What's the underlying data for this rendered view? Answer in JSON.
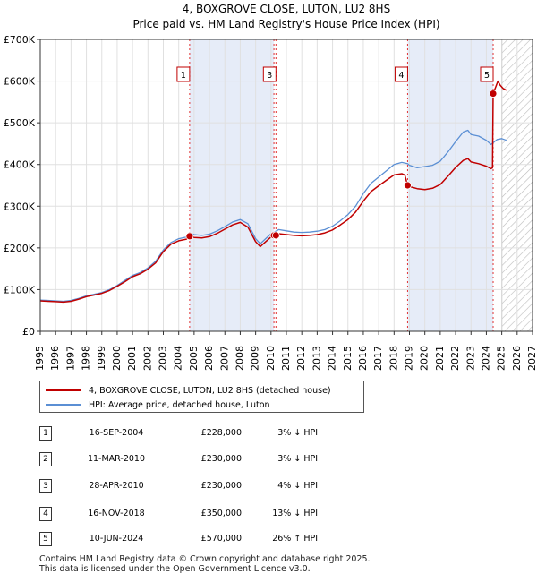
{
  "chart_data": {
    "type": "line",
    "title": "4, BOXGROVE CLOSE, LUTON, LU2 8HS",
    "subtitle": "Price paid vs. HM Land Registry's House Price Index (HPI)",
    "xlabel": "",
    "ylabel": "",
    "xlim": [
      1995,
      2027
    ],
    "ylim": [
      0,
      700000
    ],
    "x_ticks": [
      1995,
      1996,
      1997,
      1998,
      1999,
      2000,
      2001,
      2002,
      2003,
      2004,
      2005,
      2006,
      2007,
      2008,
      2009,
      2010,
      2011,
      2012,
      2013,
      2014,
      2015,
      2016,
      2017,
      2018,
      2019,
      2020,
      2021,
      2022,
      2023,
      2024,
      2025,
      2026,
      2027
    ],
    "y_ticks": [
      {
        "value": 0,
        "label": "£0"
      },
      {
        "value": 100000,
        "label": "£100K"
      },
      {
        "value": 200000,
        "label": "£200K"
      },
      {
        "value": 300000,
        "label": "£300K"
      },
      {
        "value": 400000,
        "label": "£400K"
      },
      {
        "value": 500000,
        "label": "£500K"
      },
      {
        "value": 600000,
        "label": "£600K"
      },
      {
        "value": 700000,
        "label": "£700K"
      }
    ],
    "grid": true,
    "shaded_spans": [
      [
        2004.71,
        2010.19
      ],
      [
        2018.88,
        2024.44
      ]
    ],
    "forecast_start": 2025.0,
    "series": [
      {
        "name": "HPI: Average price, detached house, Luton",
        "color": "#5b8fd4",
        "points": [
          [
            1995.0,
            75000
          ],
          [
            1995.5,
            74000
          ],
          [
            1996.0,
            73000
          ],
          [
            1996.5,
            72000
          ],
          [
            1997.0,
            74000
          ],
          [
            1997.5,
            79000
          ],
          [
            1998.0,
            85000
          ],
          [
            1998.5,
            89000
          ],
          [
            1999.0,
            93000
          ],
          [
            1999.5,
            100000
          ],
          [
            2000.0,
            110000
          ],
          [
            2000.5,
            122000
          ],
          [
            2001.0,
            134000
          ],
          [
            2001.5,
            141000
          ],
          [
            2002.0,
            152000
          ],
          [
            2002.5,
            168000
          ],
          [
            2003.0,
            195000
          ],
          [
            2003.5,
            213000
          ],
          [
            2004.0,
            222000
          ],
          [
            2004.5,
            226000
          ],
          [
            2004.71,
            235000
          ],
          [
            2005.0,
            232000
          ],
          [
            2005.5,
            230000
          ],
          [
            2006.0,
            233000
          ],
          [
            2006.5,
            241000
          ],
          [
            2007.0,
            251000
          ],
          [
            2007.5,
            262000
          ],
          [
            2008.0,
            268000
          ],
          [
            2008.5,
            258000
          ],
          [
            2009.0,
            222000
          ],
          [
            2009.3,
            210000
          ],
          [
            2009.6,
            220000
          ],
          [
            2010.0,
            234000
          ],
          [
            2010.19,
            238000
          ],
          [
            2010.32,
            240000
          ],
          [
            2010.5,
            244000
          ],
          [
            2011.0,
            241000
          ],
          [
            2011.5,
            238000
          ],
          [
            2012.0,
            237000
          ],
          [
            2012.5,
            238000
          ],
          [
            2013.0,
            240000
          ],
          [
            2013.5,
            244000
          ],
          [
            2014.0,
            252000
          ],
          [
            2014.5,
            265000
          ],
          [
            2015.0,
            280000
          ],
          [
            2015.5,
            300000
          ],
          [
            2016.0,
            330000
          ],
          [
            2016.5,
            355000
          ],
          [
            2017.0,
            370000
          ],
          [
            2017.5,
            385000
          ],
          [
            2018.0,
            400000
          ],
          [
            2018.5,
            405000
          ],
          [
            2018.88,
            402000
          ],
          [
            2019.0,
            398000
          ],
          [
            2019.5,
            392000
          ],
          [
            2020.0,
            395000
          ],
          [
            2020.5,
            398000
          ],
          [
            2021.0,
            408000
          ],
          [
            2021.5,
            430000
          ],
          [
            2022.0,
            455000
          ],
          [
            2022.5,
            478000
          ],
          [
            2022.8,
            482000
          ],
          [
            2023.0,
            472000
          ],
          [
            2023.5,
            468000
          ],
          [
            2024.0,
            458000
          ],
          [
            2024.3,
            448000
          ],
          [
            2024.44,
            452000
          ],
          [
            2024.7,
            460000
          ],
          [
            2025.0,
            462000
          ],
          [
            2025.3,
            458000
          ]
        ]
      },
      {
        "name": "4, BOXGROVE CLOSE, LUTON, LU2 8HS (detached house)",
        "color": "#c00000",
        "points": [
          [
            1995.0,
            73000
          ],
          [
            1995.5,
            72000
          ],
          [
            1996.0,
            71000
          ],
          [
            1996.5,
            70000
          ],
          [
            1997.0,
            72000
          ],
          [
            1997.5,
            77000
          ],
          [
            1998.0,
            83000
          ],
          [
            1998.5,
            87000
          ],
          [
            1999.0,
            91000
          ],
          [
            1999.5,
            98000
          ],
          [
            2000.0,
            108000
          ],
          [
            2000.5,
            119000
          ],
          [
            2001.0,
            131000
          ],
          [
            2001.5,
            138000
          ],
          [
            2002.0,
            149000
          ],
          [
            2002.5,
            164000
          ],
          [
            2003.0,
            191000
          ],
          [
            2003.5,
            209000
          ],
          [
            2004.0,
            217000
          ],
          [
            2004.5,
            221000
          ],
          [
            2004.71,
            228000
          ],
          [
            2005.0,
            225000
          ],
          [
            2005.5,
            224000
          ],
          [
            2006.0,
            227000
          ],
          [
            2006.5,
            235000
          ],
          [
            2007.0,
            245000
          ],
          [
            2007.5,
            255000
          ],
          [
            2008.0,
            261000
          ],
          [
            2008.5,
            250000
          ],
          [
            2009.0,
            215000
          ],
          [
            2009.3,
            203000
          ],
          [
            2009.6,
            213000
          ],
          [
            2010.0,
            226000
          ],
          [
            2010.19,
            230000
          ],
          [
            2010.32,
            230000
          ],
          [
            2010.5,
            234000
          ],
          [
            2011.0,
            232000
          ],
          [
            2011.5,
            230000
          ],
          [
            2012.0,
            229000
          ],
          [
            2012.5,
            230000
          ],
          [
            2013.0,
            232000
          ],
          [
            2013.5,
            236000
          ],
          [
            2014.0,
            243000
          ],
          [
            2014.5,
            255000
          ],
          [
            2015.0,
            268000
          ],
          [
            2015.5,
            286000
          ],
          [
            2016.0,
            312000
          ],
          [
            2016.5,
            335000
          ],
          [
            2017.0,
            349000
          ],
          [
            2017.5,
            362000
          ],
          [
            2018.0,
            375000
          ],
          [
            2018.5,
            378000
          ],
          [
            2018.7,
            375000
          ],
          [
            2018.88,
            350000
          ],
          [
            2019.0,
            347000
          ],
          [
            2019.5,
            342000
          ],
          [
            2020.0,
            340000
          ],
          [
            2020.5,
            343000
          ],
          [
            2021.0,
            352000
          ],
          [
            2021.5,
            372000
          ],
          [
            2022.0,
            393000
          ],
          [
            2022.5,
            410000
          ],
          [
            2022.8,
            414000
          ],
          [
            2023.0,
            406000
          ],
          [
            2023.5,
            402000
          ],
          [
            2024.0,
            396000
          ],
          [
            2024.3,
            390000
          ],
          [
            2024.4,
            392000
          ],
          [
            2024.44,
            570000
          ],
          [
            2024.6,
            585000
          ],
          [
            2024.75,
            600000
          ],
          [
            2024.9,
            590000
          ],
          [
            2025.1,
            582000
          ],
          [
            2025.3,
            578000
          ]
        ]
      }
    ],
    "transactions": [
      {
        "id": "1",
        "date": "16-SEP-2004",
        "x": 2004.71,
        "price": 228000,
        "price_label": "£228,000",
        "hpi_label": "3% ↓ HPI"
      },
      {
        "id": "2",
        "date": "11-MAR-2010",
        "x": 2010.19,
        "price": 230000,
        "price_label": "£230,000",
        "hpi_label": "3% ↓ HPI"
      },
      {
        "id": "3",
        "date": "28-APR-2010",
        "x": 2010.32,
        "price": 230000,
        "price_label": "£230,000",
        "hpi_label": "4% ↓ HPI"
      },
      {
        "id": "4",
        "date": "16-NOV-2018",
        "x": 2018.88,
        "price": 350000,
        "price_label": "£350,000",
        "hpi_label": "13% ↓ HPI"
      },
      {
        "id": "5",
        "date": "10-JUN-2024",
        "x": 2024.44,
        "price": 570000,
        "price_label": "£570,000",
        "hpi_label": "26% ↑ HPI"
      }
    ],
    "callouts": [
      {
        "id": "1",
        "x": 2004.71
      },
      {
        "id": "3",
        "x": 2010.32
      },
      {
        "id": "4",
        "x": 2018.88
      },
      {
        "id": "5",
        "x": 2024.44
      }
    ]
  },
  "legend": {
    "property_label": "4, BOXGROVE CLOSE, LUTON, LU2 8HS (detached house)",
    "hpi_label": "HPI: Average price, detached house, Luton"
  },
  "footer": {
    "line1": "Contains HM Land Registry data © Crown copyright and database right 2025.",
    "line2": "This data is licensed under the Open Government Licence v3.0."
  },
  "colors": {
    "property": "#c00000",
    "hpi": "#5b8fd4",
    "shade": "#e6ecf8"
  }
}
